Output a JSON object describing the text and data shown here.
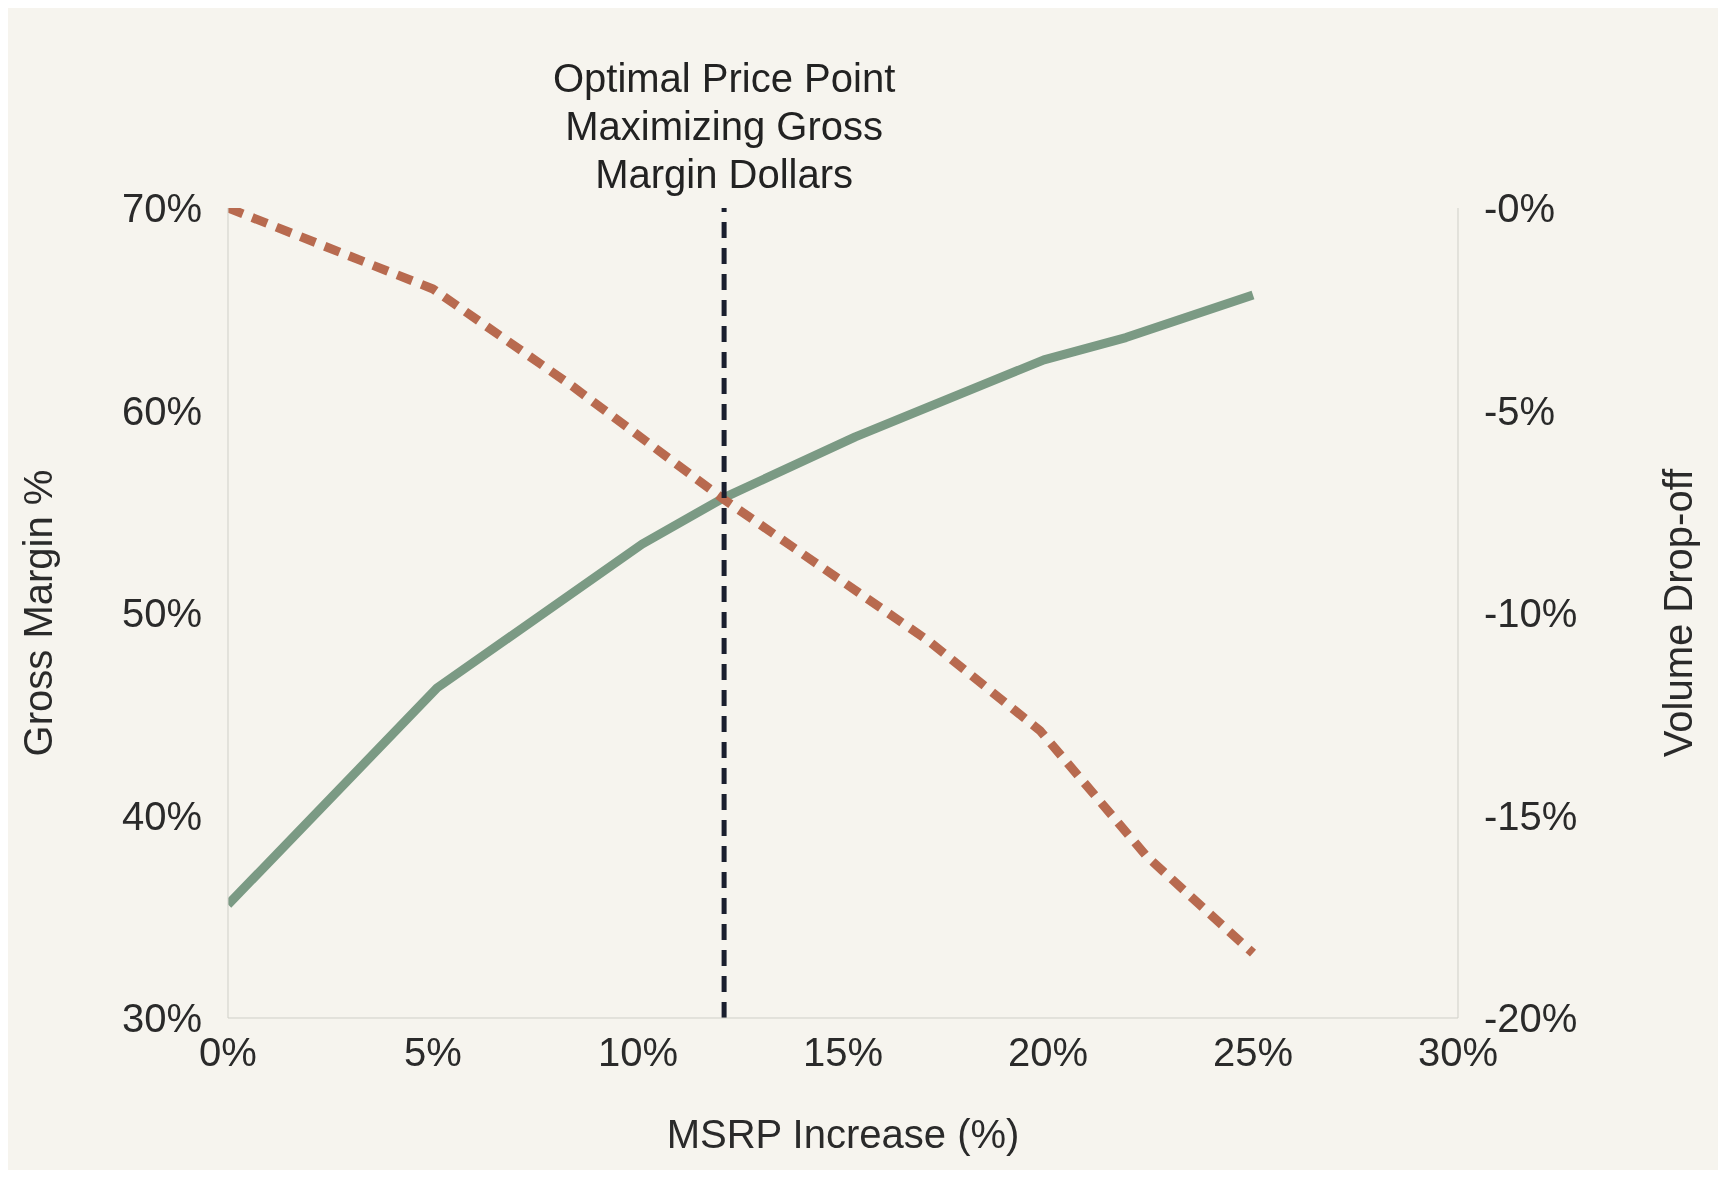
{
  "chart_data": {
    "type": "line",
    "xlabel": "MSRP Increase (%)",
    "ylabel": "Gross Margin %",
    "y2label": "Volume Drop-off",
    "xlim": [
      0,
      30
    ],
    "xticks": [
      {
        "value": 0,
        "label": "0%"
      },
      {
        "value": 5,
        "label": "5%"
      },
      {
        "value": 10,
        "label": "10%"
      },
      {
        "value": 15,
        "label": "15%"
      },
      {
        "value": 20,
        "label": "20%"
      },
      {
        "value": 25,
        "label": "25%"
      },
      {
        "value": 30,
        "label": "30%"
      }
    ],
    "ylim": [
      30,
      70
    ],
    "yticks": [
      {
        "value": 30,
        "label": "30%"
      },
      {
        "value": 40,
        "label": "40%"
      },
      {
        "value": 50,
        "label": "50%"
      },
      {
        "value": 60,
        "label": "60%"
      },
      {
        "value": 70,
        "label": "70%"
      }
    ],
    "y2lim": [
      -20,
      0
    ],
    "y2ticks": [
      {
        "value": -20,
        "label": "-20%"
      },
      {
        "value": -15,
        "label": "-15%"
      },
      {
        "value": -10,
        "label": "-10%"
      },
      {
        "value": -5,
        "label": "-5%"
      },
      {
        "value": 0,
        "label": "-0%"
      }
    ],
    "marker": "none",
    "series": [
      {
        "color": "#7b9a84",
        "line_style": "solid",
        "x": [
          0,
          5.1,
          10.1,
          12.1,
          15.3,
          19.9,
          21.9,
          25
        ],
        "values": [
          35.6,
          46.3,
          53.4,
          55.7,
          58.7,
          62.5,
          63.6,
          65.7
        ]
      },
      {
        "color": "#b86a4f",
        "line_style": "dashed",
        "axis": "y2",
        "x": [
          0,
          5,
          8.4,
          12.1,
          17.1,
          19.8,
          22.4,
          25
        ],
        "values": [
          0,
          -2,
          -4.4,
          -7.2,
          -10.7,
          -12.9,
          -16,
          -18.4
        ]
      }
    ],
    "ref_lines": [
      {
        "axis": "x",
        "value": 12.1,
        "label": "Optimal Price Point Maximizing Gross Margin Dollars",
        "color": "#1a1f2e",
        "line_style": "dashed"
      }
    ]
  }
}
